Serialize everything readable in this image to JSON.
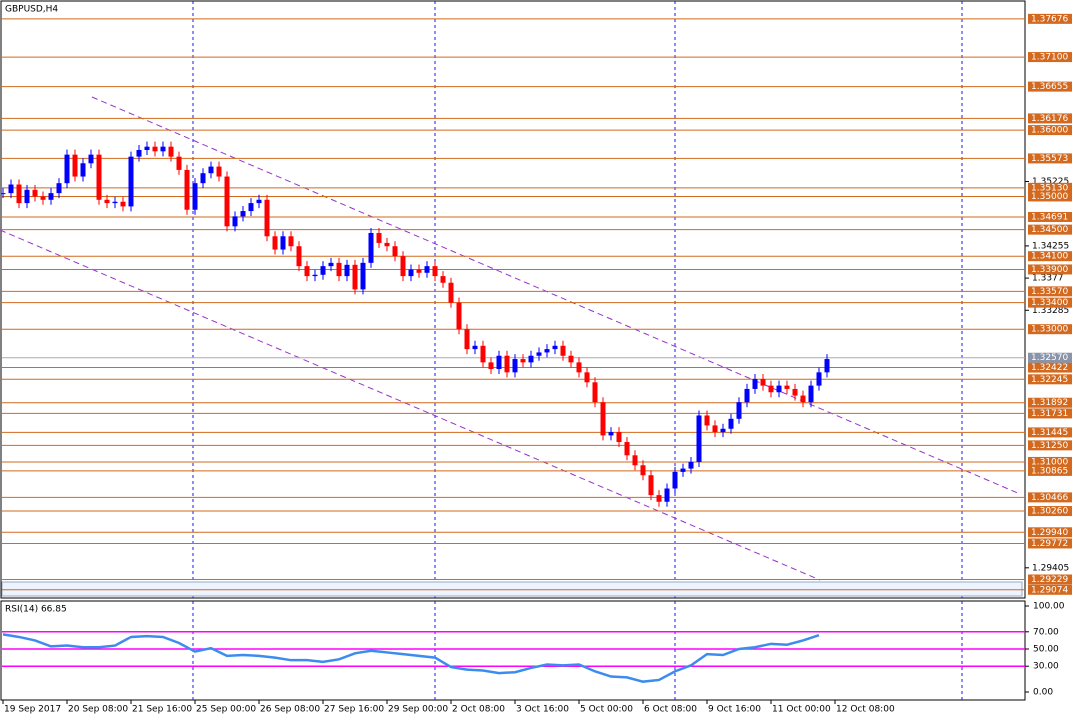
{
  "title": "GBPUSD,H4",
  "ylim": [
    1.2895,
    1.3796
  ],
  "yticks": [
    1.35225,
    1.34255,
    1.3377,
    1.33285,
    1.29405
  ],
  "levels": [
    {
      "value": 1.37676,
      "label": "1.37676"
    },
    {
      "value": 1.371,
      "label": "1.37100"
    },
    {
      "value": 1.36655,
      "label": "1.36655"
    },
    {
      "value": 1.36176,
      "label": "1.36176"
    },
    {
      "value": 1.36,
      "label": "1.36000"
    },
    {
      "value": 1.35573,
      "label": "1.35573"
    },
    {
      "value": 1.3513,
      "label": "1.35130"
    },
    {
      "value": 1.35,
      "label": "1.35000"
    },
    {
      "value": 1.34691,
      "label": "1.34691"
    },
    {
      "value": 1.345,
      "label": "1.34500"
    },
    {
      "value": 1.341,
      "label": "1.34100"
    },
    {
      "value": 1.339,
      "label": "1.33900"
    },
    {
      "value": 1.3357,
      "label": "1.33570"
    },
    {
      "value": 1.334,
      "label": "1.33400"
    },
    {
      "value": 1.33,
      "label": "1.33000"
    },
    {
      "value": 1.32422,
      "label": "1.32422"
    },
    {
      "value": 1.32245,
      "label": "1.32245"
    },
    {
      "value": 1.31892,
      "label": "1.31892"
    },
    {
      "value": 1.31731,
      "label": "1.31731"
    },
    {
      "value": 1.31445,
      "label": "1.31445"
    },
    {
      "value": 1.3125,
      "label": "1.31250"
    },
    {
      "value": 1.31,
      "label": "1.31000"
    },
    {
      "value": 1.30865,
      "label": "1.30865"
    },
    {
      "value": 1.30466,
      "label": "1.30466"
    },
    {
      "value": 1.3026,
      "label": "1.30260"
    },
    {
      "value": 1.2994,
      "label": "1.29940"
    },
    {
      "value": 1.29772,
      "label": "1.29772"
    },
    {
      "value": 1.29229,
      "label": "1.29229"
    },
    {
      "value": 1.29074,
      "label": "1.29074"
    }
  ],
  "current": {
    "value": 1.3257,
    "label": "1.32570"
  },
  "closes": [
    1.3505,
    1.3518,
    1.349,
    1.351,
    1.35,
    1.3495,
    1.3505,
    1.352,
    1.3563,
    1.353,
    1.355,
    1.3563,
    1.3495,
    1.349,
    1.3492,
    1.3485,
    1.356,
    1.357,
    1.3575,
    1.3568,
    1.3575,
    1.356,
    1.354,
    1.348,
    1.352,
    1.3535,
    1.3545,
    1.353,
    1.3455,
    1.347,
    1.3478,
    1.349,
    1.3495,
    1.344,
    1.342,
    1.344,
    1.3425,
    1.3395,
    1.338,
    1.3382,
    1.3395,
    1.34,
    1.338,
    1.3397,
    1.336,
    1.34,
    1.3445,
    1.343,
    1.3425,
    1.341,
    1.338,
    1.339,
    1.3385,
    1.3395,
    1.338,
    1.337,
    1.334,
    1.33,
    1.327,
    1.3275,
    1.325,
    1.324,
    1.326,
    1.3235,
    1.3255,
    1.325,
    1.326,
    1.3265,
    1.327,
    1.3275,
    1.326,
    1.325,
    1.3235,
    1.322,
    1.319,
    1.314,
    1.3145,
    1.313,
    1.311,
    1.3095,
    1.308,
    1.305,
    1.304,
    1.306,
    1.3085,
    1.309,
    1.31,
    1.317,
    1.3155,
    1.3145,
    1.315,
    1.3165,
    1.319,
    1.321,
    1.3225,
    1.3215,
    1.3205,
    1.3215,
    1.321,
    1.32,
    1.319,
    1.3215,
    1.3235,
    1.3255
  ],
  "x_labels": [
    "19 Sep 2017",
    "20 Sep 08:00",
    "21 Sep 16:00",
    "25 Sep 00:00",
    "26 Sep 08:00",
    "27 Sep 16:00",
    "29 Sep 00:00",
    "2 Oct 08:00",
    "3 Oct 16:00",
    "5 Oct 00:00",
    "6 Oct 08:00",
    "9 Oct 16:00",
    "11 Oct 00:00",
    "12 Oct 08:00"
  ],
  "rsi": {
    "title": "RSI(14) 66.85",
    "ylim": [
      0,
      100
    ],
    "yticks": [
      {
        "value": 100,
        "label": "100.00"
      },
      {
        "value": 70,
        "label": "70.00"
      },
      {
        "value": 50,
        "label": "50.00"
      },
      {
        "value": 30,
        "label": "30.00"
      },
      {
        "value": 0,
        "label": "0.00"
      }
    ],
    "levels": [
      70,
      50,
      30
    ],
    "values": [
      67,
      64,
      60,
      53,
      54,
      52,
      52,
      54,
      64,
      65,
      64,
      57,
      47,
      51,
      42,
      43,
      42,
      40,
      37,
      37,
      35,
      38,
      45,
      48,
      46,
      44,
      42,
      40,
      29,
      26,
      25,
      22,
      23,
      28,
      32,
      31,
      32,
      24,
      18,
      17,
      12,
      14,
      24,
      31,
      44,
      43,
      50,
      52,
      56,
      55,
      60,
      66
    ]
  }
}
